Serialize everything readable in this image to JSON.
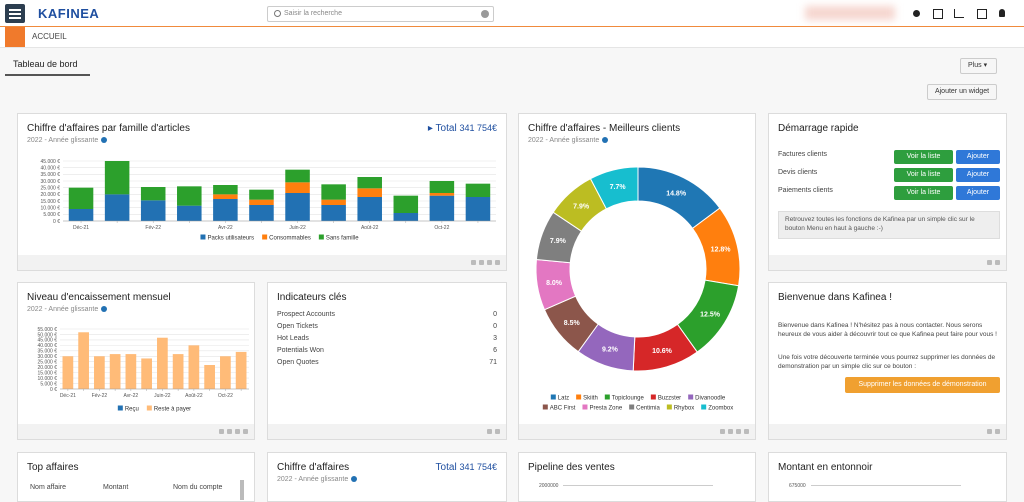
{
  "header": {
    "logo": "KAFINEA",
    "search_placeholder": "Saisir la recherche"
  },
  "breadcrumb": "ACCUEIL",
  "tab": "Tableau de bord",
  "buttons": {
    "more": "Plus",
    "add_widget": "Ajouter un widget"
  },
  "revenue_family": {
    "title": "Chiffre d'affaires par famille d'articles",
    "subtitle": "2022 - Année glissante",
    "total_label": "Total",
    "total_value": "341 754€",
    "chart": {
      "type": "bar",
      "stacked": true,
      "categories": [
        "Déc-21",
        null,
        "Fév-22",
        null,
        "Avr-22",
        null,
        "Juin-22",
        null,
        "Août-22",
        null,
        "Oct-22",
        null
      ],
      "series": [
        {
          "name": "Packs utilisateurs",
          "color": "#2271b3",
          "values": [
            9000,
            20000,
            15500,
            11500,
            16500,
            12000,
            21000,
            12000,
            18000,
            6000,
            19000,
            18000
          ]
        },
        {
          "name": "Consommables",
          "color": "#ff7f0e",
          "values": [
            0,
            0,
            0,
            0,
            3500,
            4000,
            8000,
            4000,
            6500,
            0,
            2000,
            0
          ]
        },
        {
          "name": "Sans famille",
          "color": "#2ca02c",
          "values": [
            16000,
            25000,
            10000,
            14500,
            7000,
            7500,
            9500,
            11500,
            8500,
            13000,
            9000,
            10000
          ]
        }
      ],
      "ylim": [
        0,
        45000
      ],
      "yticks": [
        {
          "value": 0,
          "label": "0 €"
        },
        {
          "value": 5000,
          "label": "5.000 €"
        },
        {
          "value": 10000,
          "label": "10.000 €"
        },
        {
          "value": 15000,
          "label": "15.000 €"
        },
        {
          "value": 20000,
          "label": "20.000 €"
        },
        {
          "value": 25000,
          "label": "25.000 €"
        },
        {
          "value": 30000,
          "label": "30.000 €"
        },
        {
          "value": 35000,
          "label": "35.000 €"
        },
        {
          "value": 40000,
          "label": "40.000 €"
        },
        {
          "value": 45000,
          "label": "45.000 €"
        }
      ]
    }
  },
  "best_clients": {
    "title": "Chiffre d'affaires - Meilleurs clients",
    "subtitle": "2022 - Année glissante",
    "chart": {
      "type": "pie",
      "donut": true,
      "categories": [
        "Latz",
        "Skiith",
        "Topiclounge",
        "Buzzster",
        "Divanoodle",
        "ABC First",
        "Presta Zone",
        "Centimia",
        "Rhybox",
        "Zoombox"
      ],
      "values": [
        14.8,
        12.8,
        12.5,
        10.6,
        9.2,
        8.5,
        8.0,
        7.9,
        7.9,
        7.7
      ],
      "value_labels": [
        "14.8%",
        "12.8%",
        "12.5%",
        "10.6%",
        "9.2%",
        "8.5%",
        "8.0%",
        "7.9%",
        "7.9%",
        "7.7%"
      ],
      "colors": [
        "#1f77b4",
        "#ff7f0e",
        "#2ca02c",
        "#d62728",
        "#9467bd",
        "#8c564b",
        "#e377c2",
        "#7f7f7f",
        "#bcbd22",
        "#17becf"
      ]
    }
  },
  "quick_start": {
    "title": "Démarrage rapide",
    "rows": [
      "Factures clients",
      "Devis clients",
      "Paiements clients"
    ],
    "view_button": "Voir la liste",
    "add_button": "Ajouter",
    "info": "Retrouvez toutes les fonctions de Kafinea par un simple clic sur le bouton Menu en haut à gauche :-)"
  },
  "collections": {
    "title": "Niveau d'encaissement mensuel",
    "subtitle": "2022 - Année glissante",
    "chart": {
      "type": "bar",
      "stacked": true,
      "categories": [
        "Déc-21",
        null,
        "Fév-22",
        null,
        "Avr-22",
        null,
        "Juin-22",
        null,
        "Août-22",
        null,
        "Oct-22",
        null
      ],
      "series": [
        {
          "name": "Reçu",
          "color": "#2271b3",
          "values": [
            0,
            0,
            0,
            0,
            0,
            0,
            0,
            0,
            0,
            0,
            0,
            0
          ]
        },
        {
          "name": "Reste à payer",
          "color": "#ffbb78",
          "values": [
            30000,
            52000,
            30000,
            32000,
            32000,
            28000,
            47000,
            32000,
            40000,
            22000,
            30000,
            34000
          ]
        }
      ],
      "ylim": [
        0,
        55000
      ],
      "yticks": [
        {
          "value": 0,
          "label": "0 €"
        },
        {
          "value": 5000,
          "label": "5.000 €"
        },
        {
          "value": 10000,
          "label": "10.000 €"
        },
        {
          "value": 15000,
          "label": "15.000 €"
        },
        {
          "value": 20000,
          "label": "20.000 €"
        },
        {
          "value": 25000,
          "label": "25.000 €"
        },
        {
          "value": 30000,
          "label": "30.000 €"
        },
        {
          "value": 35000,
          "label": "35.000 €"
        },
        {
          "value": 40000,
          "label": "40.000 €"
        },
        {
          "value": 45000,
          "label": "45.000 €"
        },
        {
          "value": 50000,
          "label": "50.000 €"
        },
        {
          "value": 55000,
          "label": "55.000 €"
        }
      ]
    }
  },
  "kpis": {
    "title": "Indicateurs clés",
    "rows": [
      [
        "Prospect Accounts",
        0
      ],
      [
        "Open Tickets",
        0
      ],
      [
        "Hot Leads",
        3
      ],
      [
        "Potentials Won",
        6
      ],
      [
        "Open Quotes",
        71
      ]
    ]
  },
  "welcome": {
    "title": "Bienvenue dans Kafinea !",
    "paragraphs": [
      "Bienvenue dans Kafinea ! N'hésitez pas à nous contacter. Nous serons heureux de vous aider à découvrir tout ce que Kafinea peut faire pour vous !",
      "Une fois votre découverte terminée vous pourrez supprimer les données de demonstration par un simple clic sur ce bouton :"
    ],
    "button": "Supprimer les données de démonstration"
  },
  "top_deals": {
    "title": "Top affaires",
    "columns": [
      "Nom affaire",
      "Montant",
      "Nom du compte"
    ]
  },
  "revenue": {
    "title": "Chiffre d'affaires",
    "subtitle": "2022 - Année glissante",
    "total_label": "Total",
    "total_value": "341 754€"
  },
  "pipeline": {
    "title": "Pipeline des ventes",
    "tick": 2000000
  },
  "funnel": {
    "title": "Montant en entonnoir",
    "tick": 675000
  }
}
